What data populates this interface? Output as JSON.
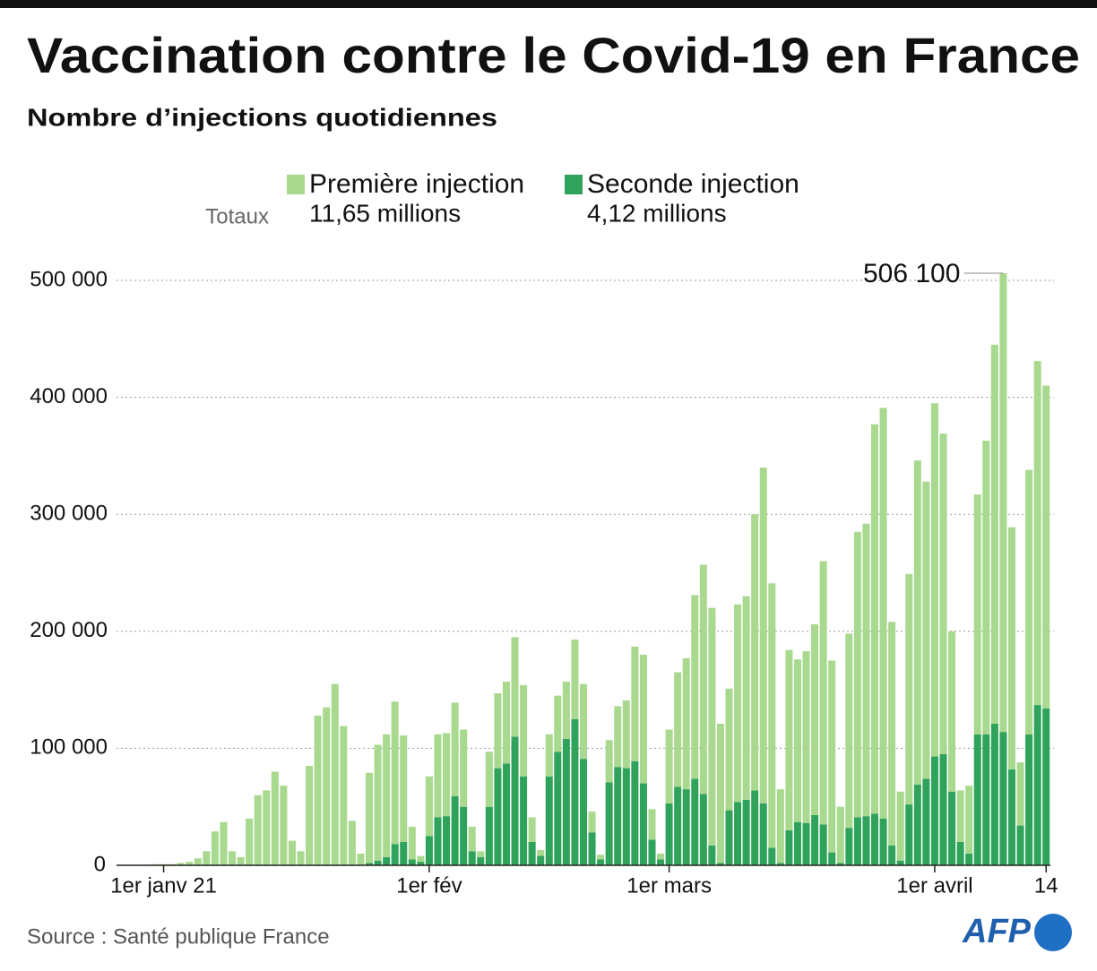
{
  "chart_data": {
    "type": "bar",
    "stacked": true,
    "title": "Vaccination contre le Covid-19 en France",
    "subtitle": "Nombre d’injections quotidiennes",
    "totals_label": "Totaux",
    "source": "Source : Santé publique France",
    "logo": "AFP",
    "categories": [
      null,
      null,
      null,
      null,
      null,
      "1er janv 21",
      null,
      null,
      null,
      null,
      null,
      null,
      null,
      null,
      null,
      null,
      null,
      null,
      null,
      null,
      null,
      null,
      null,
      null,
      null,
      null,
      null,
      null,
      null,
      null,
      null,
      null,
      null,
      null,
      null,
      null,
      "1er fév",
      null,
      null,
      null,
      null,
      null,
      null,
      null,
      null,
      null,
      null,
      null,
      null,
      null,
      null,
      null,
      null,
      null,
      null,
      null,
      null,
      null,
      null,
      null,
      null,
      null,
      null,
      null,
      "1er mars",
      null,
      null,
      null,
      null,
      null,
      null,
      null,
      null,
      null,
      null,
      null,
      null,
      null,
      null,
      null,
      null,
      null,
      null,
      null,
      null,
      null,
      null,
      null,
      null,
      null,
      null,
      null,
      null,
      null,
      null,
      "1er avril",
      null,
      null,
      null,
      null,
      null,
      null,
      null,
      null,
      null,
      null,
      null,
      null,
      "14"
    ],
    "series": [
      {
        "name": "Première injection",
        "total": "11,65 millions",
        "color": "#a8d98e",
        "values": [
          100,
          0,
          300,
          500,
          1000,
          1000,
          1000,
          2000,
          3000,
          6000,
          12000,
          29000,
          37000,
          12000,
          7000,
          40000,
          60000,
          64000,
          80000,
          68000,
          21000,
          12000,
          85000,
          128000,
          135000,
          155000,
          119000,
          38000,
          10000,
          77000,
          99000,
          105000,
          122000,
          91000,
          28000,
          5000,
          51000,
          71000,
          71000,
          80000,
          66000,
          21000,
          5000,
          47000,
          64000,
          70000,
          85000,
          78000,
          21000,
          5000,
          36000,
          48000,
          49000,
          68000,
          64000,
          18000,
          4000,
          36000,
          52000,
          58000,
          98000,
          110000,
          26000,
          5000,
          63000,
          98000,
          112000,
          157000,
          196000,
          203000,
          119000,
          104000,
          169000,
          174000,
          236000,
          287000,
          226000,
          63000,
          154000,
          139000,
          147000,
          163000,
          225000,
          164000,
          48000,
          166000,
          244000,
          250000,
          333000,
          351000,
          191000,
          59000,
          197000,
          277000,
          254000,
          302000,
          274000,
          137000,
          44000,
          58000,
          205000,
          251000,
          324000,
          392100,
          207000,
          54000,
          226000,
          294000,
          276000
        ]
      },
      {
        "name": "Seconde injection",
        "total": "4,12 millions",
        "color": "#2fa35b",
        "values": [
          0,
          0,
          0,
          0,
          0,
          0,
          0,
          0,
          0,
          0,
          0,
          0,
          0,
          0,
          0,
          0,
          0,
          0,
          0,
          0,
          0,
          0,
          0,
          0,
          0,
          0,
          0,
          0,
          0,
          2000,
          4000,
          7000,
          18000,
          20000,
          5000,
          3000,
          25000,
          41000,
          42000,
          59000,
          50000,
          12000,
          7000,
          50000,
          83000,
          87000,
          110000,
          76000,
          20000,
          8000,
          76000,
          97000,
          108000,
          125000,
          91000,
          28000,
          5000,
          71000,
          84000,
          83000,
          89000,
          70000,
          22000,
          5000,
          53000,
          67000,
          65000,
          74000,
          61000,
          17000,
          2000,
          47000,
          54000,
          56000,
          64000,
          53000,
          15000,
          2000,
          30000,
          37000,
          36000,
          43000,
          35000,
          11000,
          2000,
          32000,
          41000,
          42000,
          44000,
          40000,
          17000,
          4000,
          52000,
          69000,
          74000,
          93000,
          95000,
          63000,
          20000,
          10000,
          112000,
          112000,
          121000,
          114000,
          82000,
          34000,
          112000,
          137000,
          134000
        ]
      }
    ],
    "annotations": [
      {
        "label": "506 100",
        "value": 506100
      }
    ],
    "ylim": [
      0,
      540000
    ],
    "yticks": [
      0,
      {
        "value": 100000,
        "label": "100 000"
      },
      {
        "value": 200000,
        "label": "200 000"
      },
      {
        "value": 300000,
        "label": "300 000"
      },
      {
        "value": 400000,
        "label": "400 000"
      },
      {
        "value": 500000,
        "label": "500 000"
      }
    ],
    "grid": true
  }
}
